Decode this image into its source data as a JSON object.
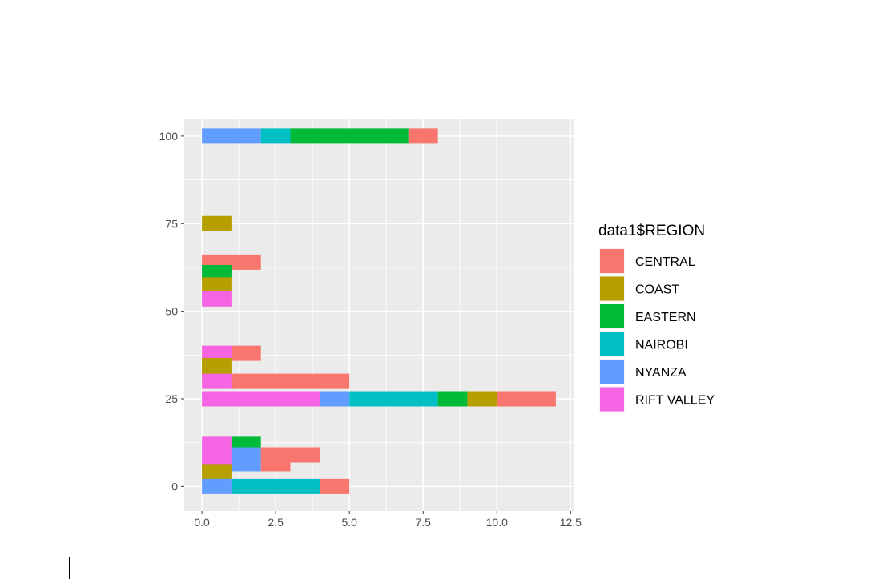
{
  "chart_data": {
    "type": "bar",
    "orientation": "horizontal",
    "stacked": true,
    "xlim": [
      -0.6,
      12.6
    ],
    "ylim": [
      -7,
      105
    ],
    "x_ticks": [
      0,
      2.5,
      5,
      7.5,
      10,
      12.5
    ],
    "x_tick_labels": [
      "0.0",
      "2.5",
      "5.0",
      "7.5",
      "10.0",
      "12.5"
    ],
    "y_ticks": [
      0,
      25,
      50,
      75,
      100
    ],
    "y_tick_labels": [
      "0",
      "25",
      "50",
      "75",
      "100"
    ],
    "grid": true,
    "legend": {
      "title": "data1$REGION",
      "position": "right",
      "entries": [
        {
          "label": "CENTRAL",
          "color": "#F8766D"
        },
        {
          "label": "COAST",
          "color": "#B79F00"
        },
        {
          "label": "EASTERN",
          "color": "#00BA38"
        },
        {
          "label": "NAIROBI",
          "color": "#00BFC4"
        },
        {
          "label": "NYANZA",
          "color": "#619CFF"
        },
        {
          "label": "RIFT VALLEY",
          "color": "#F564E3"
        }
      ]
    },
    "bars": [
      {
        "y": 100,
        "segments": [
          {
            "region": "NYANZA",
            "count": 2
          },
          {
            "region": "NAIROBI",
            "count": 1
          },
          {
            "region": "EASTERN",
            "count": 4
          },
          {
            "region": "CENTRAL",
            "count": 1
          }
        ]
      },
      {
        "y": 75,
        "segments": [
          {
            "region": "COAST",
            "count": 1
          }
        ]
      },
      {
        "y": 64,
        "segments": [
          {
            "region": "CENTRAL",
            "count": 2
          }
        ]
      },
      {
        "y": 61,
        "segments": [
          {
            "region": "EASTERN",
            "count": 1
          }
        ]
      },
      {
        "y": 57.5,
        "segments": [
          {
            "region": "COAST",
            "count": 1
          }
        ]
      },
      {
        "y": 53.5,
        "segments": [
          {
            "region": "RIFT VALLEY",
            "count": 1
          }
        ]
      },
      {
        "y": 38,
        "segments": [
          {
            "region": "RIFT VALLEY",
            "count": 1
          },
          {
            "region": "CENTRAL",
            "count": 1
          }
        ]
      },
      {
        "y": 34.5,
        "segments": [
          {
            "region": "COAST",
            "count": 1
          }
        ]
      },
      {
        "y": 32.5,
        "segments": [
          {
            "region": "COAST",
            "count": 1
          }
        ]
      },
      {
        "y": 30,
        "segments": [
          {
            "region": "RIFT VALLEY",
            "count": 1
          },
          {
            "region": "CENTRAL",
            "count": 4
          }
        ]
      },
      {
        "y": 25,
        "segments": [
          {
            "region": "RIFT VALLEY",
            "count": 4
          },
          {
            "region": "NYANZA",
            "count": 1
          },
          {
            "region": "NAIROBI",
            "count": 3
          },
          {
            "region": "EASTERN",
            "count": 1
          },
          {
            "region": "COAST",
            "count": 1
          },
          {
            "region": "CENTRAL",
            "count": 2
          }
        ]
      },
      {
        "y": 12,
        "segments": [
          {
            "region": "RIFT VALLEY",
            "count": 1
          },
          {
            "region": "EASTERN",
            "count": 1
          }
        ]
      },
      {
        "y": 9,
        "segments": [
          {
            "region": "RIFT VALLEY",
            "count": 1
          },
          {
            "region": "NYANZA",
            "count": 1
          },
          {
            "region": "CENTRAL",
            "count": 2
          }
        ]
      },
      {
        "y": 6.5,
        "segments": [
          {
            "region": "RIFT VALLEY",
            "count": 1
          },
          {
            "region": "NYANZA",
            "count": 1
          },
          {
            "region": "CENTRAL",
            "count": 1
          }
        ]
      },
      {
        "y": 4,
        "segments": [
          {
            "region": "COAST",
            "count": 1
          }
        ]
      },
      {
        "y": 0,
        "segments": [
          {
            "region": "NYANZA",
            "count": 1
          },
          {
            "region": "NAIROBI",
            "count": 3
          },
          {
            "region": "CENTRAL",
            "count": 1
          }
        ]
      }
    ]
  }
}
